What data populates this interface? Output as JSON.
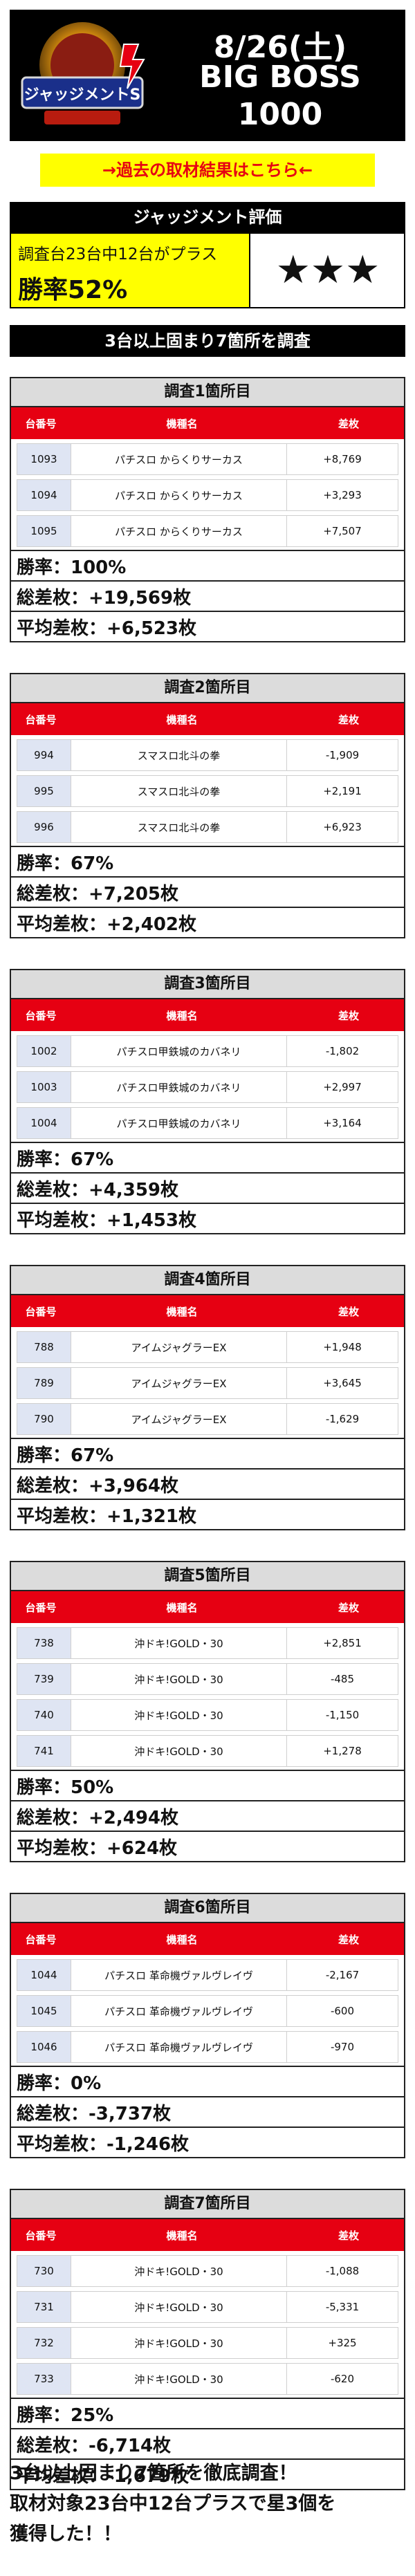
{
  "header": {
    "logo_text": "ジャッジメントS",
    "date": "8/26(土)",
    "store": "BIG BOSS",
    "store_number": "1000"
  },
  "link_banner": "→過去の取材結果はこちら←",
  "judgment": {
    "title": "ジャッジメント評価",
    "description": "調査台23台中12台がプラス",
    "win_rate": "勝率52%",
    "stars": "★★★"
  },
  "survey_title": "3台以上固まり7箇所を調査",
  "table_headers": {
    "number": "台番号",
    "model": "機種名",
    "diff": "差枚"
  },
  "sections": [
    {
      "title": "調査1箇所目",
      "rows": [
        {
          "num": "1093",
          "model": "パチスロ からくりサーカス",
          "diff": "+8,769"
        },
        {
          "num": "1094",
          "model": "パチスロ からくりサーカス",
          "diff": "+3,293"
        },
        {
          "num": "1095",
          "model": "パチスロ からくりサーカス",
          "diff": "+7,507"
        }
      ],
      "win_rate": "勝率：100%",
      "total": "総差枚：+19,569枚",
      "avg": "平均差枚：+6,523枚"
    },
    {
      "title": "調査2箇所目",
      "rows": [
        {
          "num": "994",
          "model": "スマスロ北斗の拳",
          "diff": "-1,909"
        },
        {
          "num": "995",
          "model": "スマスロ北斗の拳",
          "diff": "+2,191"
        },
        {
          "num": "996",
          "model": "スマスロ北斗の拳",
          "diff": "+6,923"
        }
      ],
      "win_rate": "勝率：67%",
      "total": "総差枚：+7,205枚",
      "avg": "平均差枚：+2,402枚"
    },
    {
      "title": "調査3箇所目",
      "rows": [
        {
          "num": "1002",
          "model": "パチスロ甲鉄城のカバネリ",
          "diff": "-1,802"
        },
        {
          "num": "1003",
          "model": "パチスロ甲鉄城のカバネリ",
          "diff": "+2,997"
        },
        {
          "num": "1004",
          "model": "パチスロ甲鉄城のカバネリ",
          "diff": "+3,164"
        }
      ],
      "win_rate": "勝率：67%",
      "total": "総差枚：+4,359枚",
      "avg": "平均差枚：+1,453枚"
    },
    {
      "title": "調査4箇所目",
      "rows": [
        {
          "num": "788",
          "model": "アイムジャグラーEX",
          "diff": "+1,948"
        },
        {
          "num": "789",
          "model": "アイムジャグラーEX",
          "diff": "+3,645"
        },
        {
          "num": "790",
          "model": "アイムジャグラーEX",
          "diff": "-1,629"
        }
      ],
      "win_rate": "勝率：67%",
      "total": "総差枚：+3,964枚",
      "avg": "平均差枚：+1,321枚"
    },
    {
      "title": "調査5箇所目",
      "rows": [
        {
          "num": "738",
          "model": "沖ドキ!GOLD・30",
          "diff": "+2,851"
        },
        {
          "num": "739",
          "model": "沖ドキ!GOLD・30",
          "diff": "-485"
        },
        {
          "num": "740",
          "model": "沖ドキ!GOLD・30",
          "diff": "-1,150"
        },
        {
          "num": "741",
          "model": "沖ドキ!GOLD・30",
          "diff": "+1,278"
        }
      ],
      "win_rate": "勝率：50%",
      "total": "総差枚：+2,494枚",
      "avg": "平均差枚：+624枚"
    },
    {
      "title": "調査6箇所目",
      "rows": [
        {
          "num": "1044",
          "model": "パチスロ 革命機ヴァルヴレイヴ",
          "diff": "-2,167"
        },
        {
          "num": "1045",
          "model": "パチスロ 革命機ヴァルヴレイヴ",
          "diff": "-600"
        },
        {
          "num": "1046",
          "model": "パチスロ 革命機ヴァルヴレイヴ",
          "diff": "-970"
        }
      ],
      "win_rate": "勝率：0%",
      "total": "総差枚：-3,737枚",
      "avg": "平均差枚：-1,246枚"
    },
    {
      "title": "調査7箇所目",
      "rows": [
        {
          "num": "730",
          "model": "沖ドキ!GOLD・30",
          "diff": "-1,088"
        },
        {
          "num": "731",
          "model": "沖ドキ!GOLD・30",
          "diff": "-5,331"
        },
        {
          "num": "732",
          "model": "沖ドキ!GOLD・30",
          "diff": "+325"
        },
        {
          "num": "733",
          "model": "沖ドキ!GOLD・30",
          "diff": "-620"
        }
      ],
      "win_rate": "勝率：25%",
      "total": "総差枚：-6,714枚",
      "avg": "平均差枚：-1,679枚"
    }
  ],
  "footer": {
    "line1": "3台以上固まり7箇所を徹底調査！",
    "line2": "取材対象23台中12台プラスで星3個を",
    "line3": "獲得した！！"
  }
}
